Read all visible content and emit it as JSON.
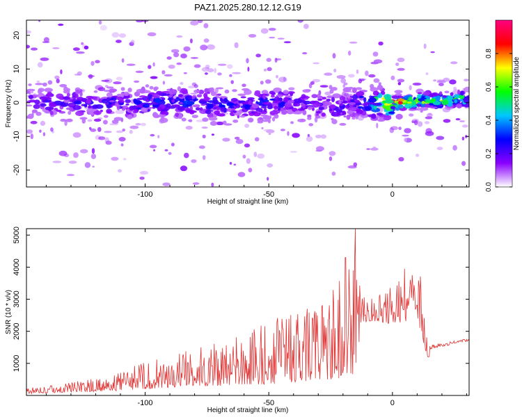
{
  "title": "PAZ1.2025.280.12.12.G19",
  "chart_data": [
    {
      "type": "heatmap",
      "name": "spectrogram",
      "xlabel": "Height of straight line (km)",
      "ylabel": "Frequency (Hz)",
      "xlim": [
        -148,
        31
      ],
      "ylim": [
        -25,
        24.5
      ],
      "xticks": [
        -100,
        -50,
        0
      ],
      "yticks": [
        -20,
        -10,
        0,
        10,
        20
      ],
      "colorbar": {
        "label": "Normalized spectral amplitude",
        "range": [
          0,
          1
        ],
        "ticks": [
          0.0,
          0.2,
          0.4,
          0.6,
          0.8
        ],
        "colormap": [
          "#ffffff",
          "#8a00ff",
          "#0000ff",
          "#00c8ff",
          "#00ff00",
          "#ffff00",
          "#ff0000",
          "#ff0080"
        ]
      },
      "ridge": {
        "description_points_x": [
          -148,
          -120,
          -100,
          -80,
          -60,
          -50,
          -40,
          -30,
          -20,
          -10,
          0,
          10,
          20,
          31
        ],
        "center_freq": [
          0,
          0,
          0,
          0,
          -1,
          0,
          0,
          -1,
          -1,
          0,
          0,
          0.5,
          0.8,
          1
        ],
        "peak_amplitude": [
          0.2,
          0.25,
          0.3,
          0.3,
          0.25,
          0.3,
          0.25,
          0.2,
          0.25,
          0.35,
          0.95,
          0.75,
          0.7,
          0.6
        ]
      }
    },
    {
      "type": "line",
      "name": "snr",
      "xlabel": "Height of straight line (km)",
      "ylabel": "SNR (10 * v/v)",
      "xlim": [
        -148,
        31
      ],
      "ylim": [
        0,
        5200
      ],
      "xticks": [
        -100,
        -50,
        0
      ],
      "yticks": [
        1000,
        2000,
        3000,
        4000,
        5000
      ],
      "series": [
        {
          "name": "SNR",
          "color": "#e03030",
          "envelope_x": [
            -148,
            -140,
            -130,
            -120,
            -110,
            -100,
            -90,
            -80,
            -70,
            -60,
            -50,
            -40,
            -30,
            -25,
            -20,
            -18,
            -15,
            -13,
            -12,
            -10,
            -5,
            0,
            5,
            10,
            13,
            14,
            15,
            16,
            18,
            20,
            25,
            31
          ],
          "envelope_min": [
            50,
            80,
            100,
            120,
            150,
            200,
            250,
            300,
            300,
            350,
            350,
            400,
            500,
            500,
            550,
            600,
            700,
            1800,
            2200,
            2300,
            2300,
            2200,
            2300,
            2400,
            1500,
            1200,
            1200,
            1300,
            1400,
            1450,
            1550,
            1650
          ],
          "envelope_max": [
            250,
            300,
            450,
            550,
            700,
            1100,
            1300,
            1500,
            1700,
            2000,
            2300,
            2700,
            3100,
            3300,
            4200,
            3800,
            5200,
            3400,
            3200,
            3000,
            3200,
            3500,
            3900,
            3800,
            3600,
            2000,
            1800,
            1700,
            1650,
            1650,
            1750,
            1800
          ],
          "peaks": [
            {
              "x": -19,
              "y": 4300
            },
            {
              "x": -15,
              "y": 5200
            },
            {
              "x": 5,
              "y": 3950
            }
          ]
        }
      ]
    }
  ]
}
